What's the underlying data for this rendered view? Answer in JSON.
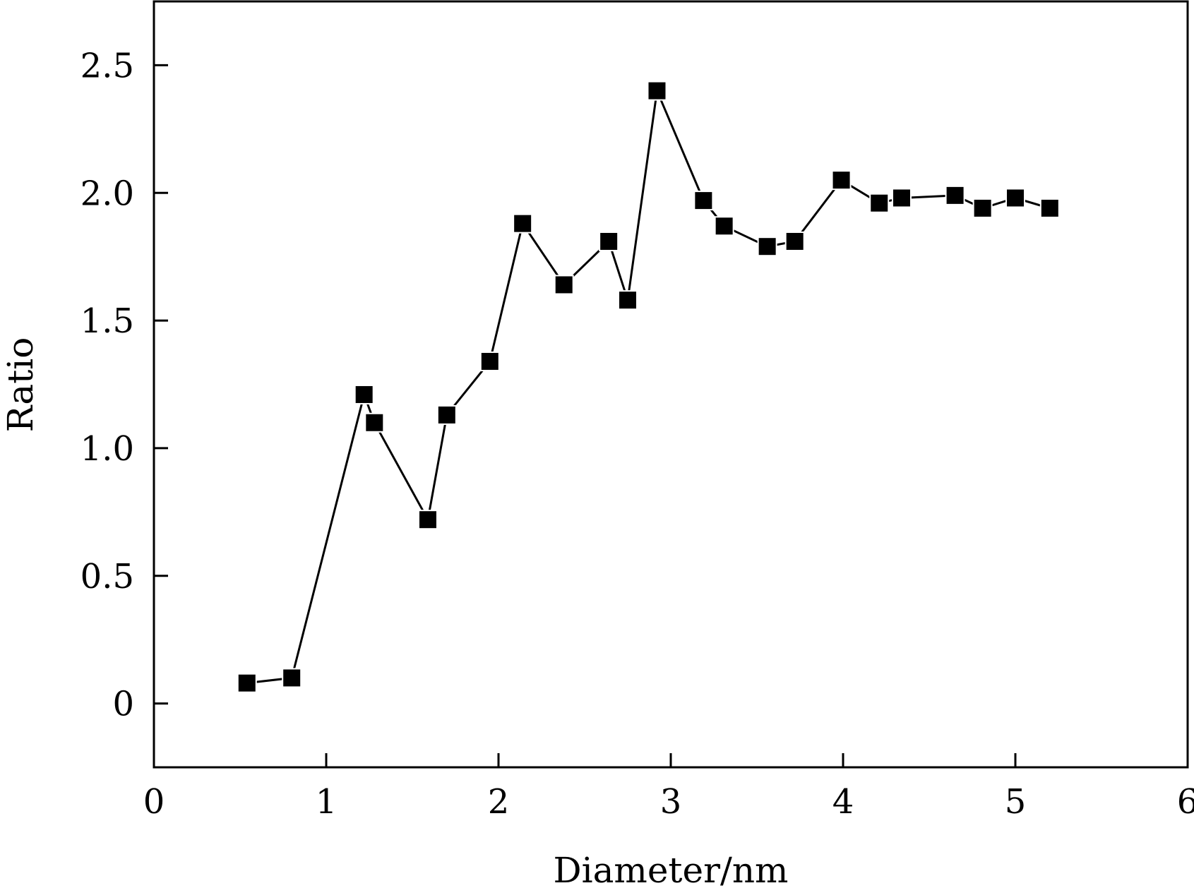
{
  "chart_data": {
    "type": "line",
    "title": "",
    "xlabel": "Diameter/nm",
    "ylabel": "Ratio",
    "xlim": [
      0,
      6
    ],
    "ylim": [
      -0.25,
      2.75
    ],
    "xticks": [
      0,
      1,
      2,
      3,
      4,
      5,
      6
    ],
    "xtick_labels": [
      "0",
      "1",
      "2",
      "3",
      "4",
      "5",
      "6"
    ],
    "yticks": [
      0,
      0.5,
      1.0,
      1.5,
      2.0,
      2.5
    ],
    "ytick_labels": [
      "0",
      "0.5",
      "1.0",
      "1.5",
      "2.0",
      "2.5"
    ],
    "grid": false,
    "marker": "square",
    "series": [
      {
        "color": "#000000",
        "x": [
          0.54,
          0.8,
          1.22,
          1.28,
          1.59,
          1.7,
          1.95,
          2.14,
          2.38,
          2.64,
          2.75,
          2.92,
          3.19,
          3.31,
          3.56,
          3.72,
          3.99,
          4.21,
          4.34,
          4.65,
          4.81,
          5.0,
          5.2
        ],
        "y": [
          0.08,
          0.1,
          1.21,
          1.1,
          0.72,
          1.13,
          1.34,
          1.88,
          1.64,
          1.81,
          1.58,
          2.4,
          1.97,
          1.87,
          1.79,
          1.81,
          2.05,
          1.96,
          1.98,
          1.99,
          1.94,
          1.98,
          1.94
        ]
      }
    ]
  }
}
